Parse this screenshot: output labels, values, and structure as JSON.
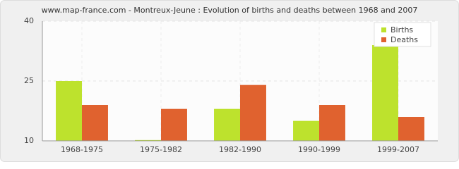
{
  "chart_data": {
    "type": "bar",
    "title": "www.map-france.com - Montreux-Jeune : Evolution of births and deaths between 1968 and 2007",
    "categories": [
      "1968-1975",
      "1975-1982",
      "1982-1990",
      "1990-1999",
      "1999-2007"
    ],
    "series": [
      {
        "name": "Births",
        "color": "#bde22d",
        "values": [
          25,
          10.2,
          18,
          15,
          34
        ]
      },
      {
        "name": "Deaths",
        "color": "#e0622f",
        "values": [
          19,
          18,
          24,
          19,
          16
        ]
      }
    ],
    "ylim": [
      10,
      40
    ],
    "yticks": [
      10,
      25,
      40
    ],
    "grid": true,
    "legend": "top-right"
  }
}
